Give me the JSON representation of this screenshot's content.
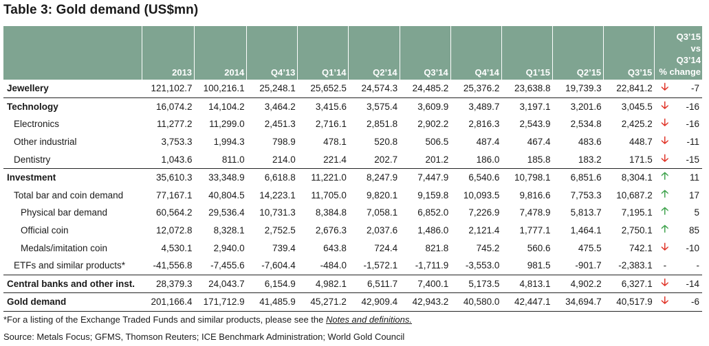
{
  "title": "Table 3: Gold demand (US$mn)",
  "header": {
    "columns": [
      "2013",
      "2014",
      "Q4’13",
      "Q1’14",
      "Q2’14",
      "Q3’14",
      "Q4’14",
      "Q1’15",
      "Q2’15",
      "Q3’15"
    ],
    "change_line1": "Q3’15",
    "change_line2": "vs",
    "change_line3": "Q3’14",
    "change_line4": "% change"
  },
  "rows": [
    {
      "label": "Jewellery",
      "values": [
        "121,102.7",
        "100,216.1",
        "25,248.1",
        "25,652.5",
        "24,574.3",
        "24,485.2",
        "25,376.2",
        "23,638.8",
        "19,739.3",
        "22,841.2"
      ],
      "arrow": "down",
      "arrow_glyph": "🡣",
      "change": "-7"
    },
    {
      "label": "Technology",
      "values": [
        "16,074.2",
        "14,104.2",
        "3,464.2",
        "3,415.6",
        "3,575.4",
        "3,609.9",
        "3,489.7",
        "3,197.1",
        "3,201.6",
        "3,045.5"
      ],
      "arrow": "down",
      "arrow_glyph": "🡣",
      "change": "-16"
    },
    {
      "label": "Electronics",
      "values": [
        "11,277.2",
        "11,299.0",
        "2,451.3",
        "2,716.1",
        "2,851.8",
        "2,902.2",
        "2,816.3",
        "2,543.9",
        "2,534.8",
        "2,425.2"
      ],
      "arrow": "down",
      "arrow_glyph": "🡣",
      "change": "-16"
    },
    {
      "label": "Other industrial",
      "values": [
        "3,753.3",
        "1,994.3",
        "798.9",
        "478.1",
        "520.8",
        "506.5",
        "487.4",
        "467.4",
        "483.6",
        "448.7"
      ],
      "arrow": "down",
      "arrow_glyph": "🡣",
      "change": "-11"
    },
    {
      "label": "Dentistry",
      "values": [
        "1,043.6",
        "811.0",
        "214.0",
        "221.4",
        "202.7",
        "201.2",
        "186.0",
        "185.8",
        "183.2",
        "171.5"
      ],
      "arrow": "down",
      "arrow_glyph": "🡣",
      "change": "-15"
    },
    {
      "label": "Investment",
      "values": [
        "35,610.3",
        "33,348.9",
        "6,618.8",
        "11,221.0",
        "8,247.9",
        "7,447.9",
        "6,540.6",
        "10,798.1",
        "6,851.6",
        "8,304.1"
      ],
      "arrow": "up",
      "arrow_glyph": "🡡",
      "change": "11"
    },
    {
      "label": "Total bar and coin demand",
      "values": [
        "77,167.1",
        "40,804.5",
        "14,223.1",
        "11,705.0",
        "9,820.1",
        "9,159.8",
        "10,093.5",
        "9,816.6",
        "7,753.3",
        "10,687.2"
      ],
      "arrow": "up",
      "arrow_glyph": "🡡",
      "change": "17"
    },
    {
      "label": "Physical bar demand",
      "values": [
        "60,564.2",
        "29,536.4",
        "10,731.3",
        "8,384.8",
        "7,058.1",
        "6,852.0",
        "7,226.9",
        "7,478.9",
        "5,813.7",
        "7,195.1"
      ],
      "arrow": "up",
      "arrow_glyph": "🡡",
      "change": "5"
    },
    {
      "label": "Official coin",
      "values": [
        "12,072.8",
        "8,328.1",
        "2,752.5",
        "2,676.3",
        "2,037.6",
        "1,486.0",
        "2,121.4",
        "1,777.1",
        "1,464.1",
        "2,750.1"
      ],
      "arrow": "up",
      "arrow_glyph": "🡡",
      "change": "85"
    },
    {
      "label": "Medals/imitation coin",
      "values": [
        "4,530.1",
        "2,940.0",
        "739.4",
        "643.8",
        "724.4",
        "821.8",
        "745.2",
        "560.6",
        "475.5",
        "742.1"
      ],
      "arrow": "down",
      "arrow_glyph": "🡣",
      "change": "-10"
    },
    {
      "label": "ETFs and similar products*",
      "values": [
        "-41,556.8",
        "-7,455.6",
        "-7,604.4",
        "-484.0",
        "-1,572.1",
        "-1,711.9",
        "-3,553.0",
        "981.5",
        "-901.7",
        "-2,383.1"
      ],
      "arrow": "none",
      "arrow_glyph": "-",
      "change": "-"
    },
    {
      "label": "Central banks and other inst.",
      "values": [
        "28,379.3",
        "24,043.7",
        "6,154.9",
        "4,982.1",
        "6,511.7",
        "7,400.1",
        "5,173.5",
        "4,813.1",
        "4,902.2",
        "6,327.1"
      ],
      "arrow": "down",
      "arrow_glyph": "🡣",
      "change": "-14"
    },
    {
      "label": "Gold demand",
      "values": [
        "201,166.4",
        "171,712.9",
        "41,485.9",
        "45,271.2",
        "42,909.4",
        "42,943.2",
        "40,580.0",
        "42,447.1",
        "34,694.7",
        "40,517.9"
      ],
      "arrow": "down",
      "arrow_glyph": "🡣",
      "change": "-6"
    }
  ],
  "footnote_prefix": "*For a listing of the Exchange Traded Funds and similar products, please see the ",
  "footnote_link": "Notes and definitions.",
  "source": "Source: Metals Focus; GFMS, Thomson Reuters; ICE Benchmark Administration; World Gold Council",
  "colors": {
    "header_bg": "#7fa491",
    "down_arrow": "#e03427",
    "up_arrow": "#3fa34d"
  }
}
